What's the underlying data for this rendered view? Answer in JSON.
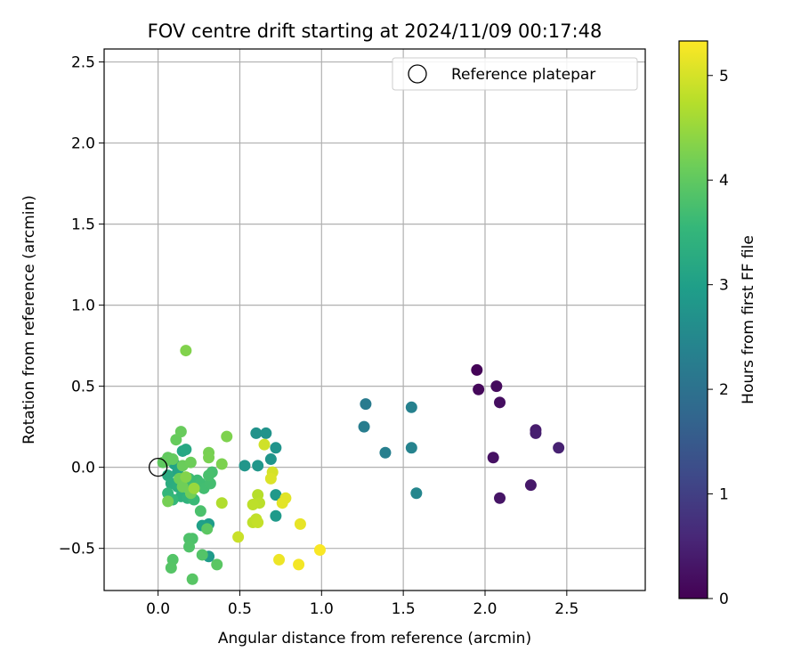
{
  "chart_data": {
    "type": "scatter",
    "title": "FOV centre drift starting at 2024/11/09 00:17:48",
    "xlabel": "Angular distance from reference (arcmin)",
    "ylabel": "Rotation from reference (arcmin)",
    "xlim": [
      -0.33,
      2.98
    ],
    "ylim": [
      -0.76,
      2.58
    ],
    "xticks": [
      0.0,
      0.5,
      1.0,
      1.5,
      2.0,
      2.5
    ],
    "xtick_labels": [
      "0.0",
      "0.5",
      "1.0",
      "1.5",
      "2.0",
      "2.5"
    ],
    "yticks": [
      -0.5,
      0.0,
      0.5,
      1.0,
      1.5,
      2.0,
      2.5
    ],
    "ytick_labels": [
      "−0.5",
      "0.0",
      "0.5",
      "1.0",
      "1.5",
      "2.0",
      "2.5"
    ],
    "grid": true,
    "legend": {
      "position": "top-right",
      "entries": [
        {
          "label": "Reference platepar",
          "marker": "open-circle",
          "color": "#000000"
        }
      ]
    },
    "reference_point": {
      "x": 0.0,
      "y": 0.0
    },
    "colorbar": {
      "label": "Hours from first FF file",
      "min": 0,
      "max": 5.33,
      "ticks": [
        0,
        1,
        2,
        3,
        4,
        5
      ],
      "tick_labels": [
        "0",
        "1",
        "2",
        "3",
        "4",
        "5"
      ],
      "colormap": "viridis",
      "stops": [
        "#440154",
        "#482878",
        "#3e4a89",
        "#31688e",
        "#26828e",
        "#1f9e89",
        "#35b779",
        "#6ece58",
        "#b5de2b",
        "#fde725"
      ]
    },
    "points": [
      {
        "x": 1.95,
        "y": 0.6,
        "c": 0.05
      },
      {
        "x": 1.96,
        "y": 0.48,
        "c": 0.1
      },
      {
        "x": 2.07,
        "y": 0.5,
        "c": 0.15
      },
      {
        "x": 2.09,
        "y": 0.4,
        "c": 0.2
      },
      {
        "x": 2.05,
        "y": 0.06,
        "c": 0.25
      },
      {
        "x": 2.09,
        "y": -0.19,
        "c": 0.3
      },
      {
        "x": 2.28,
        "y": -0.11,
        "c": 0.35
      },
      {
        "x": 2.31,
        "y": 0.23,
        "c": 0.4
      },
      {
        "x": 2.31,
        "y": 0.21,
        "c": 0.45
      },
      {
        "x": 2.45,
        "y": 0.12,
        "c": 0.5
      },
      {
        "x": 1.27,
        "y": 0.39,
        "c": 2.2
      },
      {
        "x": 1.26,
        "y": 0.25,
        "c": 2.25
      },
      {
        "x": 1.39,
        "y": 0.09,
        "c": 2.3
      },
      {
        "x": 1.55,
        "y": 0.37,
        "c": 2.35
      },
      {
        "x": 1.55,
        "y": 0.12,
        "c": 2.4
      },
      {
        "x": 1.58,
        "y": -0.16,
        "c": 2.45
      },
      {
        "x": 0.6,
        "y": 0.21,
        "c": 2.7
      },
      {
        "x": 0.66,
        "y": 0.21,
        "c": 2.72
      },
      {
        "x": 0.72,
        "y": 0.12,
        "c": 2.75
      },
      {
        "x": 0.69,
        "y": 0.05,
        "c": 2.78
      },
      {
        "x": 0.53,
        "y": 0.01,
        "c": 2.8
      },
      {
        "x": 0.61,
        "y": 0.01,
        "c": 2.82
      },
      {
        "x": 0.72,
        "y": -0.17,
        "c": 2.85
      },
      {
        "x": 0.72,
        "y": -0.3,
        "c": 2.88
      },
      {
        "x": 0.31,
        "y": -0.55,
        "c": 2.9
      },
      {
        "x": 0.31,
        "y": -0.35,
        "c": 2.95
      },
      {
        "x": 0.27,
        "y": -0.36,
        "c": 3.0
      },
      {
        "x": 0.1,
        "y": 0.02,
        "c": 3.05
      },
      {
        "x": 0.12,
        "y": -0.03,
        "c": 3.1
      },
      {
        "x": 0.15,
        "y": 0.1,
        "c": 3.15
      },
      {
        "x": 0.17,
        "y": 0.11,
        "c": 3.2
      },
      {
        "x": 0.06,
        "y": -0.05,
        "c": 3.25
      },
      {
        "x": 0.08,
        "y": -0.1,
        "c": 3.3
      },
      {
        "x": 0.12,
        "y": -0.12,
        "c": 3.35
      },
      {
        "x": 0.14,
        "y": -0.18,
        "c": 3.4
      },
      {
        "x": 0.18,
        "y": -0.19,
        "c": 3.45
      },
      {
        "x": 0.06,
        "y": -0.16,
        "c": 3.5
      },
      {
        "x": 0.09,
        "y": -0.2,
        "c": 3.55
      },
      {
        "x": 0.22,
        "y": -0.2,
        "c": 3.6
      },
      {
        "x": 0.19,
        "y": -0.07,
        "c": 3.62
      },
      {
        "x": 0.24,
        "y": -0.08,
        "c": 3.64
      },
      {
        "x": 0.21,
        "y": -0.12,
        "c": 3.66
      },
      {
        "x": 0.26,
        "y": -0.1,
        "c": 3.68
      },
      {
        "x": 0.28,
        "y": -0.13,
        "c": 3.7
      },
      {
        "x": 0.32,
        "y": -0.1,
        "c": 3.72
      },
      {
        "x": 0.33,
        "y": -0.03,
        "c": 3.74
      },
      {
        "x": 0.31,
        "y": -0.05,
        "c": 3.76
      },
      {
        "x": 0.26,
        "y": -0.27,
        "c": 3.78
      },
      {
        "x": 0.21,
        "y": -0.44,
        "c": 3.8
      },
      {
        "x": 0.19,
        "y": -0.44,
        "c": 3.82
      },
      {
        "x": 0.19,
        "y": -0.49,
        "c": 3.84
      },
      {
        "x": 0.27,
        "y": -0.54,
        "c": 3.86
      },
      {
        "x": 0.09,
        "y": -0.57,
        "c": 3.88
      },
      {
        "x": 0.08,
        "y": -0.62,
        "c": 3.9
      },
      {
        "x": 0.21,
        "y": -0.69,
        "c": 3.92
      },
      {
        "x": 0.36,
        "y": -0.6,
        "c": 3.94
      },
      {
        "x": 0.3,
        "y": -0.38,
        "c": 3.96
      },
      {
        "x": 0.05,
        "y": 0.04,
        "c": 3.98
      },
      {
        "x": 0.03,
        "y": 0.03,
        "c": 4.0
      },
      {
        "x": 0.06,
        "y": 0.06,
        "c": 4.02
      },
      {
        "x": 0.09,
        "y": 0.05,
        "c": 4.04
      },
      {
        "x": 0.11,
        "y": 0.17,
        "c": 4.06
      },
      {
        "x": 0.14,
        "y": 0.22,
        "c": 4.08
      },
      {
        "x": 0.15,
        "y": 0.01,
        "c": 4.1
      },
      {
        "x": 0.2,
        "y": 0.03,
        "c": 4.12
      },
      {
        "x": 0.13,
        "y": -0.07,
        "c": 4.14
      },
      {
        "x": 0.15,
        "y": -0.12,
        "c": 4.16
      },
      {
        "x": 0.2,
        "y": -0.16,
        "c": 4.18
      },
      {
        "x": 0.06,
        "y": -0.21,
        "c": 4.2
      },
      {
        "x": 0.31,
        "y": 0.09,
        "c": 4.22
      },
      {
        "x": 0.31,
        "y": 0.06,
        "c": 4.24
      },
      {
        "x": 0.39,
        "y": 0.02,
        "c": 4.26
      },
      {
        "x": 0.42,
        "y": 0.19,
        "c": 4.28
      },
      {
        "x": 0.17,
        "y": 0.72,
        "c": 4.3
      },
      {
        "x": 0.17,
        "y": -0.06,
        "c": 4.32
      },
      {
        "x": 0.22,
        "y": -0.13,
        "c": 4.5
      },
      {
        "x": 0.39,
        "y": -0.22,
        "c": 4.7
      },
      {
        "x": 0.61,
        "y": -0.17,
        "c": 4.75
      },
      {
        "x": 0.62,
        "y": -0.22,
        "c": 4.78
      },
      {
        "x": 0.58,
        "y": -0.23,
        "c": 4.8
      },
      {
        "x": 0.58,
        "y": -0.34,
        "c": 4.82
      },
      {
        "x": 0.6,
        "y": -0.32,
        "c": 4.84
      },
      {
        "x": 0.61,
        "y": -0.34,
        "c": 4.86
      },
      {
        "x": 0.49,
        "y": -0.43,
        "c": 4.9
      },
      {
        "x": 0.65,
        "y": 0.14,
        "c": 4.95
      },
      {
        "x": 0.7,
        "y": -0.03,
        "c": 5.0
      },
      {
        "x": 0.69,
        "y": -0.07,
        "c": 5.05
      },
      {
        "x": 0.78,
        "y": -0.19,
        "c": 5.1
      },
      {
        "x": 0.76,
        "y": -0.22,
        "c": 5.12
      },
      {
        "x": 0.87,
        "y": -0.35,
        "c": 5.15
      },
      {
        "x": 0.74,
        "y": -0.57,
        "c": 5.2
      },
      {
        "x": 0.86,
        "y": -0.6,
        "c": 5.25
      },
      {
        "x": 0.99,
        "y": -0.51,
        "c": 5.3
      }
    ]
  }
}
